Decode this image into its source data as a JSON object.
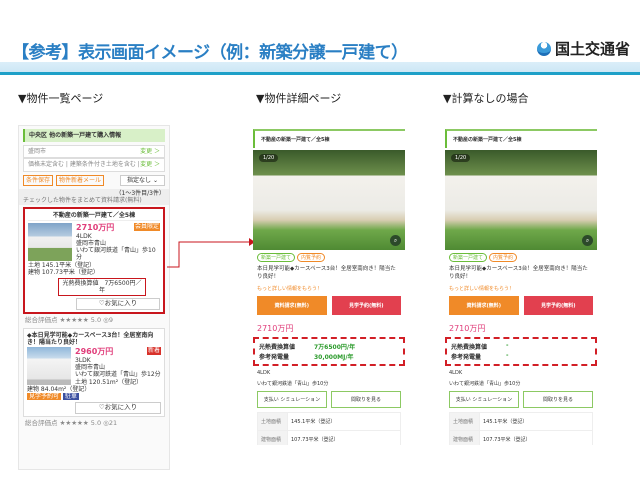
{
  "header": {
    "title": "【参考】表示画面イメージ（例：新築分譲一戸建て）",
    "logo_text": "国土交通省"
  },
  "sections": [
    "▼物件一覧ページ",
    "▼物件詳細ページ",
    "▼計算なしの場合"
  ],
  "list_page": {
    "heading": "中央区 他の新築一戸建て購入情報",
    "filters": [
      {
        "label": "盛岡市",
        "action": "変更 ＞"
      },
      {
        "label": "価格未定含む | 建築条件付き土地を含む |",
        "action": "変更 ＞"
      }
    ],
    "save_condition": "条件保存",
    "mail": "物件新着メール",
    "sort": "指定なし",
    "count": "（1～3件目/3件）",
    "bulk": "チェックした物件をまとめて資料請求(無料)",
    "items": [
      {
        "title": "不動産の新築一戸建て／全5棟",
        "price": "2710万円",
        "layout": "4LDK",
        "address": "盛岡市青山",
        "access": "いわて銀河鉄道「青山」歩10分",
        "land": "土地 145.1平米（登記）",
        "building": "建物 107.73平米（登記）",
        "energy": "光熱費換算値　7万6500円／年",
        "badge": "会員限定",
        "fav": "♡お気に入り",
        "rating": "総合評価点 ★★★★★ 5.0 ◎9"
      },
      {
        "title": "◆本日見学可能◆カースペース3台！全居室南向き！陽当たり良好！",
        "price": "2960万円",
        "layout": "3LDK",
        "address": "盛岡市青山",
        "access": "いわて銀河鉄道「青山」歩12分",
        "land": "土地 120.51m²（登記）",
        "building": "建物 84.04m²（登記）",
        "tags": [
          "見学予約可",
          "駐車"
        ],
        "badge": "新着",
        "fav": "♡お気に入り",
        "rating": "総合評価点 ★★★★★ 5.0 ◎21"
      }
    ]
  },
  "detail_pages": [
    {
      "title": "不動産の新築一戸建て／全5棟",
      "photo_count": "1/20",
      "tags": [
        "新築一戸建て",
        "内覧予約"
      ],
      "catch": "本日見学可能◆カースペース3台！全居室南向き！陽当たり良好！",
      "more": "もっと詳しい情報をもらう！",
      "request": "資料請求(無料)",
      "visit": "見学予約(無料)",
      "price": "2710万円",
      "energy_label": "光熱費換算値",
      "energy_value": "7万6500円/年",
      "power_label": "参考発電量",
      "power_value": "30,000MJ/年",
      "layout": "4LDK",
      "access": "いわて銀河鉄道「青山」歩10分",
      "sim": "支払い シミュレーション",
      "floorplan": "間取りを見る",
      "specs": [
        {
          "k": "土地面積",
          "v": "145.1平米（登記）"
        },
        {
          "k": "建物面積",
          "v": "107.73平米（登記）"
        }
      ]
    },
    {
      "title": "不動産の新築一戸建て／全5棟",
      "photo_count": "1/20",
      "tags": [
        "新築一戸建て",
        "内覧予約"
      ],
      "catch": "本日見学可能◆カースペース3台！全居室南向き！陽当たり良好！",
      "more": "もっと詳しい情報をもらう！",
      "request": "資料請求(無料)",
      "visit": "見学予約(無料)",
      "price": "2710万円",
      "energy_label": "光熱費換算値",
      "energy_value": "-",
      "power_label": "参考発電量",
      "power_value": "-",
      "layout": "4LDK",
      "access": "いわて銀河鉄道「青山」歩10分",
      "sim": "支払い シミュレーション",
      "floorplan": "間取りを見る",
      "specs": [
        {
          "k": "土地面積",
          "v": "145.1平米（登記）"
        },
        {
          "k": "建物面積",
          "v": "107.73平米（登記）"
        }
      ]
    }
  ],
  "colors": {
    "accent": "#2a7fc4",
    "highlight": "#c8161d",
    "price": "#e03d7a",
    "orange": "#f08a28",
    "red": "#e2404f",
    "green": "#6bbd3a"
  }
}
